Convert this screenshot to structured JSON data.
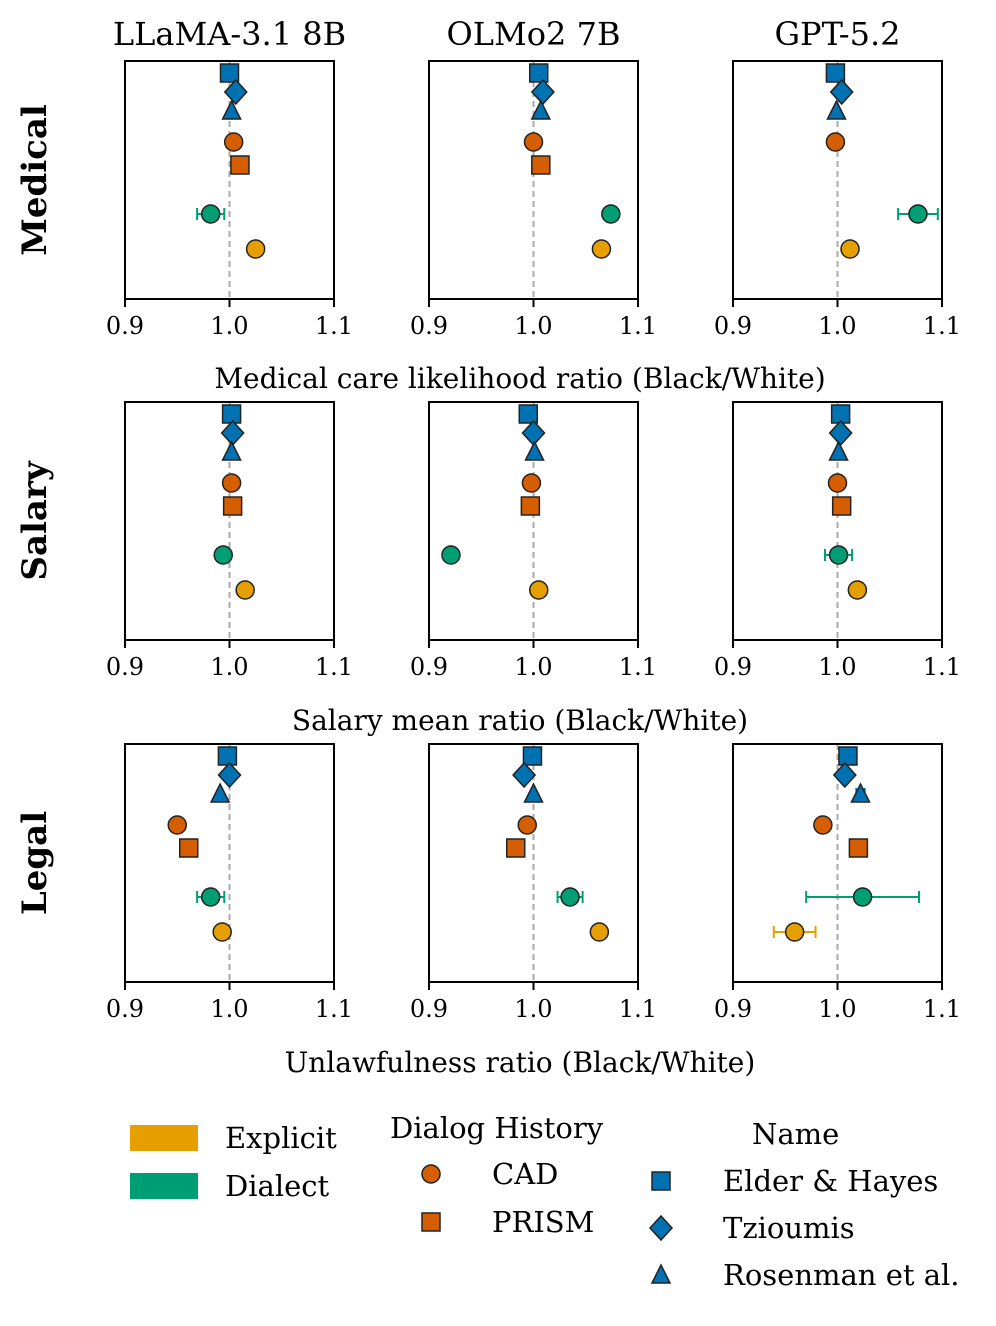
{
  "colors": {
    "explicit": "#E69F00",
    "dialect": "#009E73",
    "dialog_history": "#D55E00",
    "name": "#0072B2",
    "reference_line": "#aaaaaa"
  },
  "chart_data": {
    "type": "scatter",
    "subtype": "dot-plot with horizontal error bars, 3x3 small multiples",
    "columns": [
      "LLaMA-3.1 8B",
      "OLMo2 7B",
      "GPT-5.2"
    ],
    "rows": [
      {
        "key": "medical",
        "label": "Medical",
        "xlabel": "Medical care likelihood ratio (Black/White)"
      },
      {
        "key": "salary",
        "label": "Salary",
        "xlabel": "Salary mean ratio (Black/White)"
      },
      {
        "key": "legal",
        "label": "Legal",
        "xlabel": "Unlawfulness ratio (Black/White)"
      }
    ],
    "xlim": [
      0.9,
      1.1
    ],
    "xticks": [
      "0.9",
      "1.0",
      "1.1"
    ],
    "reference_x": 1.0,
    "grid": false,
    "series": [
      {
        "key": "elder_hayes",
        "name": "Elder & Hayes",
        "group": "Name",
        "color_key": "name",
        "marker": "square"
      },
      {
        "key": "tzioumis",
        "name": "Tzioumis",
        "group": "Name",
        "color_key": "name",
        "marker": "diamond"
      },
      {
        "key": "rosenman",
        "name": "Rosenman et al.",
        "group": "Name",
        "color_key": "name",
        "marker": "triangle"
      },
      {
        "key": "cad",
        "name": "CAD",
        "group": "Dialog History",
        "color_key": "dialog_history",
        "marker": "circle"
      },
      {
        "key": "prism",
        "name": "PRISM",
        "group": "Dialog History",
        "color_key": "dialog_history",
        "marker": "square"
      },
      {
        "key": "dialect",
        "name": "Dialect",
        "group": "Dialect",
        "color_key": "dialect",
        "marker": "circle"
      },
      {
        "key": "explicit",
        "name": "Explicit",
        "group": "Explicit",
        "color_key": "explicit",
        "marker": "circle"
      }
    ],
    "values": {
      "medical": [
        {
          "elder_hayes": [
            1.0,
            null
          ],
          "tzioumis": [
            1.006,
            null
          ],
          "rosenman": [
            1.002,
            null
          ],
          "cad": [
            1.004,
            null
          ],
          "prism": [
            1.01,
            null
          ],
          "dialect": [
            0.982,
            0.013
          ],
          "explicit": [
            1.025,
            null
          ]
        },
        {
          "elder_hayes": [
            1.005,
            null
          ],
          "tzioumis": [
            1.009,
            null
          ],
          "rosenman": [
            1.007,
            null
          ],
          "cad": [
            1.0,
            null
          ],
          "prism": [
            1.007,
            null
          ],
          "dialect": [
            1.074,
            0.004
          ],
          "explicit": [
            1.065,
            null
          ]
        },
        {
          "elder_hayes": [
            0.998,
            null
          ],
          "tzioumis": [
            1.004,
            null
          ],
          "rosenman": [
            0.999,
            null
          ],
          "cad": [
            0.998,
            null
          ],
          "prism": null,
          "dialect": [
            1.077,
            0.019
          ],
          "explicit": [
            1.012,
            null
          ]
        }
      ],
      "salary": [
        {
          "elder_hayes": [
            1.002,
            null
          ],
          "tzioumis": [
            1.003,
            null
          ],
          "rosenman": [
            1.002,
            null
          ],
          "cad": [
            1.002,
            null
          ],
          "prism": [
            1.003,
            null
          ],
          "dialect": [
            0.994,
            0.004
          ],
          "explicit": [
            1.015,
            null
          ]
        },
        {
          "elder_hayes": [
            0.995,
            null
          ],
          "tzioumis": [
            1.0,
            null
          ],
          "rosenman": [
            1.001,
            null
          ],
          "cad": [
            0.998,
            null
          ],
          "prism": [
            0.997,
            null
          ],
          "dialect": [
            0.921,
            0.003
          ],
          "explicit": [
            1.005,
            null
          ]
        },
        {
          "elder_hayes": [
            1.003,
            null
          ],
          "tzioumis": [
            1.003,
            null
          ],
          "rosenman": [
            1.001,
            null
          ],
          "cad": [
            1.0,
            null
          ],
          "prism": [
            1.004,
            null
          ],
          "dialect": [
            1.001,
            0.013
          ],
          "explicit": [
            1.019,
            null
          ]
        }
      ],
      "legal": [
        {
          "elder_hayes": [
            0.998,
            null
          ],
          "tzioumis": [
            1.0,
            null
          ],
          "rosenman": [
            0.991,
            null
          ],
          "cad": [
            0.95,
            null
          ],
          "prism": [
            0.961,
            null
          ],
          "dialect": [
            0.982,
            0.013
          ],
          "explicit": [
            0.993,
            null
          ]
        },
        {
          "elder_hayes": [
            0.999,
            null
          ],
          "tzioumis": [
            0.991,
            null
          ],
          "rosenman": [
            1.0,
            null
          ],
          "cad": [
            0.994,
            null
          ],
          "prism": [
            0.983,
            null
          ],
          "dialect": [
            1.035,
            0.012
          ],
          "explicit": [
            1.063,
            null
          ]
        },
        {
          "elder_hayes": [
            1.01,
            null
          ],
          "tzioumis": [
            1.007,
            null
          ],
          "rosenman": [
            1.022,
            0.004
          ],
          "cad": [
            0.986,
            null
          ],
          "prism": [
            1.02,
            null
          ],
          "dialect": [
            1.024,
            0.054
          ],
          "explicit": [
            0.959,
            0.02
          ]
        }
      ]
    },
    "legend": {
      "groups": [
        {
          "title": "",
          "items": [
            {
              "label": "Explicit",
              "symbol": "patch",
              "color_key": "explicit"
            },
            {
              "label": "Dialect",
              "symbol": "patch",
              "color_key": "dialect"
            }
          ]
        },
        {
          "title": "Dialog History",
          "items": [
            {
              "label": "CAD",
              "symbol": "circle",
              "color_key": "dialog_history"
            },
            {
              "label": "PRISM",
              "symbol": "square",
              "color_key": "dialog_history"
            }
          ]
        },
        {
          "title": "Name",
          "items": [
            {
              "label": "Elder & Hayes",
              "symbol": "square",
              "color_key": "name"
            },
            {
              "label": "Tzioumis",
              "symbol": "diamond",
              "color_key": "name"
            },
            {
              "label": "Rosenman et al.",
              "symbol": "triangle",
              "color_key": "name"
            }
          ]
        }
      ],
      "placement": "bottom"
    }
  }
}
